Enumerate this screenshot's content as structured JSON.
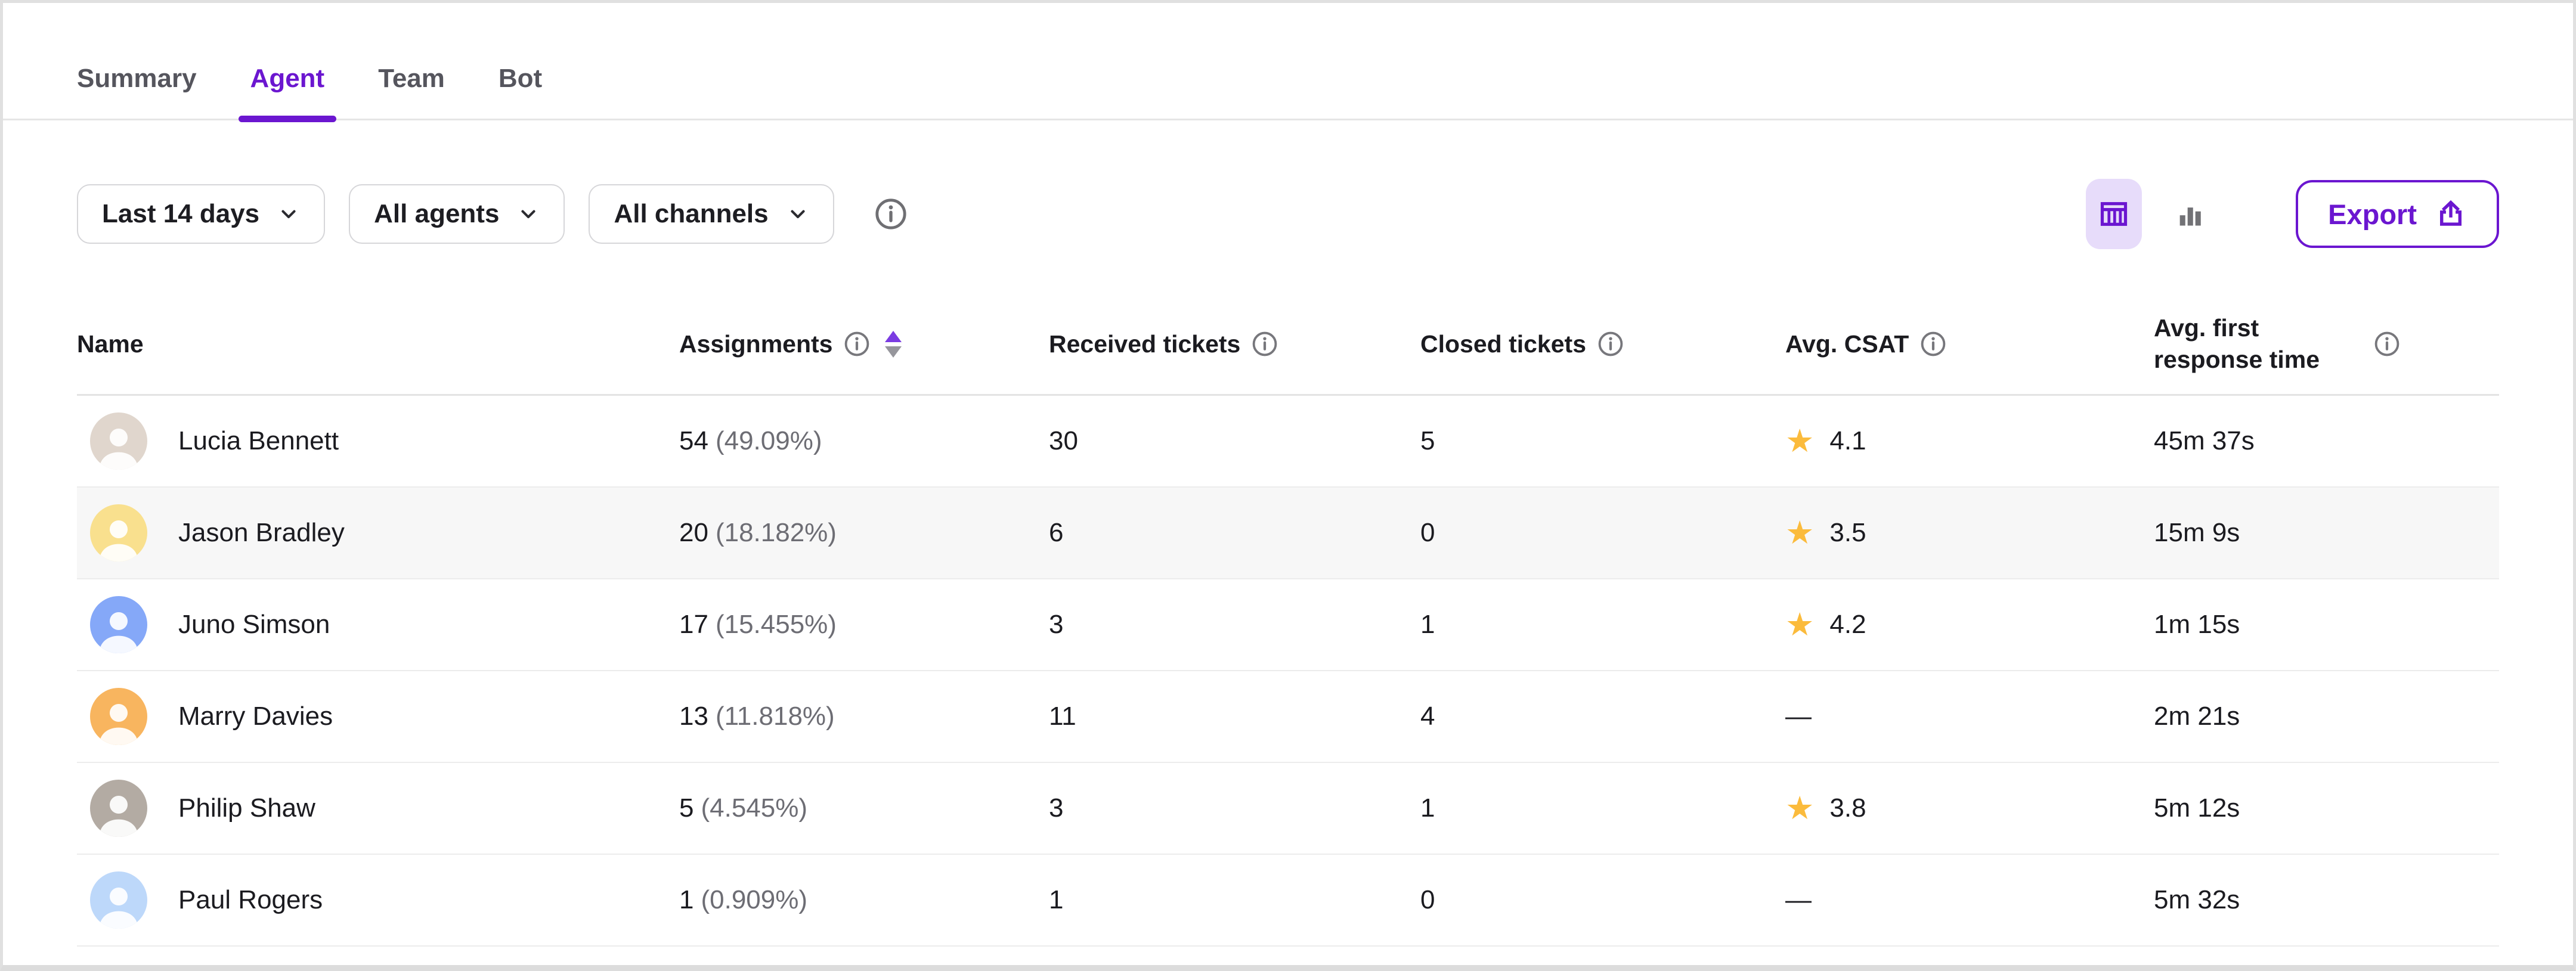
{
  "colors": {
    "accent": "#6b16d0",
    "accent_soft_bg": "#e7dcfa",
    "star": "#fbbb3c",
    "row_highlight": "#f7f7f7"
  },
  "tabs": {
    "items": [
      {
        "label": "Summary",
        "active": false
      },
      {
        "label": "Agent",
        "active": true
      },
      {
        "label": "Team",
        "active": false
      },
      {
        "label": "Bot",
        "active": false
      }
    ]
  },
  "filters": {
    "items": [
      {
        "label": "Last 14 days"
      },
      {
        "label": "All agents"
      },
      {
        "label": "All channels"
      }
    ],
    "info_icon": "info-icon"
  },
  "view_toggle": {
    "active": "table",
    "options": [
      {
        "id": "table",
        "icon": "table-grid-icon"
      },
      {
        "id": "chart",
        "icon": "bar-chart-icon"
      }
    ]
  },
  "export": {
    "label": "Export",
    "icon": "upload-icon"
  },
  "table": {
    "sort": {
      "column": "assignments",
      "active_direction": "up"
    },
    "columns": [
      {
        "id": "name",
        "label": "Name",
        "info": false,
        "sortable": false,
        "two_line": false
      },
      {
        "id": "assignments",
        "label": "Assignments",
        "info": true,
        "sortable": true,
        "two_line": false
      },
      {
        "id": "received",
        "label": "Received tickets",
        "info": true,
        "sortable": false,
        "two_line": false
      },
      {
        "id": "closed",
        "label": "Closed tickets",
        "info": true,
        "sortable": false,
        "two_line": false
      },
      {
        "id": "csat",
        "label": "Avg. CSAT",
        "info": true,
        "sortable": false,
        "two_line": false
      },
      {
        "id": "frt",
        "label": "Avg. first response time",
        "info": true,
        "sortable": false,
        "two_line": true
      }
    ],
    "rows": [
      {
        "name": "Lucia Bennett",
        "avatar_bg": "#e0d6cd",
        "assignments": "54",
        "assignments_pct": "(49.09%)",
        "received": "30",
        "closed": "5",
        "csat_star": true,
        "csat": "4.1",
        "frt": "45m 37s",
        "shaded": false
      },
      {
        "name": "Jason Bradley",
        "avatar_bg": "#f9e08e",
        "assignments": "20",
        "assignments_pct": "(18.182%)",
        "received": "6",
        "closed": "0",
        "csat_star": true,
        "csat": "3.5",
        "frt": "15m 9s",
        "shaded": true
      },
      {
        "name": "Juno Simson",
        "avatar_bg": "#85a8f8",
        "assignments": "17",
        "assignments_pct": "(15.455%)",
        "received": "3",
        "closed": "1",
        "csat_star": true,
        "csat": "4.2",
        "frt": "1m 15s",
        "shaded": false
      },
      {
        "name": "Marry Davies",
        "avatar_bg": "#f8b55f",
        "assignments": "13",
        "assignments_pct": "(11.818%)",
        "received": "11",
        "closed": "4",
        "csat_star": false,
        "csat": "—",
        "frt": "2m 21s",
        "shaded": false
      },
      {
        "name": "Philip Shaw",
        "avatar_bg": "#b3aba3",
        "assignments": "5",
        "assignments_pct": "(4.545%)",
        "received": "3",
        "closed": "1",
        "csat_star": true,
        "csat": "3.8",
        "frt": "5m 12s",
        "shaded": false
      },
      {
        "name": "Paul Rogers",
        "avatar_bg": "#bdd8fa",
        "assignments": "1",
        "assignments_pct": "(0.909%)",
        "received": "1",
        "closed": "0",
        "csat_star": false,
        "csat": "—",
        "frt": "5m 32s",
        "shaded": false
      }
    ]
  }
}
